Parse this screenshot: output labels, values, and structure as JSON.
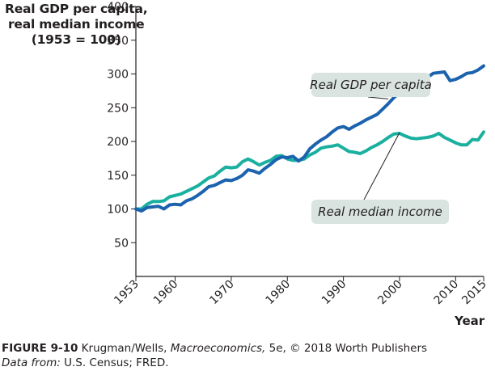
{
  "chart_data": {
    "type": "line",
    "ylabel_lines": [
      "Real GDP per capita,",
      "real median income",
      "(1953 = 100)"
    ],
    "xlabel": "Year",
    "ylim": [
      0,
      400
    ],
    "xlim": [
      1953,
      2015
    ],
    "yticks": [
      50,
      100,
      150,
      200,
      250,
      300,
      350,
      400
    ],
    "xticks": [
      1953,
      1960,
      1970,
      1980,
      1990,
      2000,
      2010,
      2015
    ],
    "grid": false,
    "series": [
      {
        "name": "Real GDP per capita",
        "color": "#1b63ae",
        "x": [
          1953,
          1954,
          1955,
          1956,
          1957,
          1958,
          1959,
          1960,
          1961,
          1962,
          1963,
          1964,
          1965,
          1966,
          1967,
          1968,
          1969,
          1970,
          1971,
          1972,
          1973,
          1974,
          1975,
          1976,
          1977,
          1978,
          1979,
          1980,
          1981,
          1982,
          1983,
          1984,
          1985,
          1986,
          1987,
          1988,
          1989,
          1990,
          1991,
          1992,
          1993,
          1994,
          1995,
          1996,
          1997,
          1998,
          1999,
          2000,
          2001,
          2002,
          2003,
          2004,
          2005,
          2006,
          2007,
          2008,
          2009,
          2010,
          2011,
          2012,
          2013,
          2014,
          2015
        ],
        "values": [
          100,
          97,
          102,
          103,
          104,
          100,
          106,
          107,
          106,
          112,
          115,
          120,
          126,
          133,
          135,
          139,
          143,
          142,
          145,
          150,
          158,
          156,
          153,
          160,
          166,
          173,
          177,
          176,
          178,
          171,
          177,
          189,
          196,
          202,
          207,
          214,
          220,
          222,
          218,
          223,
          227,
          232,
          236,
          240,
          248,
          256,
          265,
          272,
          274,
          276,
          278,
          287,
          295,
          301,
          302,
          303,
          290,
          292,
          296,
          301,
          302,
          306,
          312
        ]
      },
      {
        "name": "Real median income",
        "color": "#1ab0a0",
        "x": [
          1953,
          1954,
          1955,
          1956,
          1957,
          1958,
          1959,
          1960,
          1961,
          1962,
          1963,
          1964,
          1965,
          1966,
          1967,
          1968,
          1969,
          1970,
          1971,
          1972,
          1973,
          1974,
          1975,
          1976,
          1977,
          1978,
          1979,
          1980,
          1981,
          1982,
          1983,
          1984,
          1985,
          1986,
          1987,
          1988,
          1989,
          1990,
          1991,
          1992,
          1993,
          1994,
          1995,
          1996,
          1997,
          1998,
          1999,
          2000,
          2001,
          2002,
          2003,
          2004,
          2005,
          2006,
          2007,
          2008,
          2009,
          2010,
          2011,
          2012,
          2013,
          2014,
          2015
        ],
        "values": [
          100,
          100,
          107,
          111,
          111,
          112,
          118,
          120,
          122,
          126,
          130,
          134,
          140,
          146,
          149,
          156,
          162,
          161,
          162,
          170,
          174,
          170,
          165,
          169,
          172,
          178,
          179,
          174,
          172,
          172,
          174,
          180,
          184,
          190,
          192,
          193,
          195,
          190,
          185,
          184,
          182,
          186,
          191,
          195,
          200,
          206,
          211,
          212,
          208,
          205,
          204,
          205,
          206,
          208,
          212,
          206,
          202,
          198,
          195,
          195,
          203,
          202,
          214
        ]
      }
    ],
    "annotations": [
      "Real GDP per capita",
      "Real median income"
    ]
  },
  "caption": {
    "figure_label": "FIGURE 9-10",
    "authors": " Krugman/Wells, ",
    "book": "Macroeconomics,",
    "rest": " 5e, © 2018 Worth Publishers",
    "source_label": "Data from:",
    "source": " U.S. Census; FRED."
  }
}
